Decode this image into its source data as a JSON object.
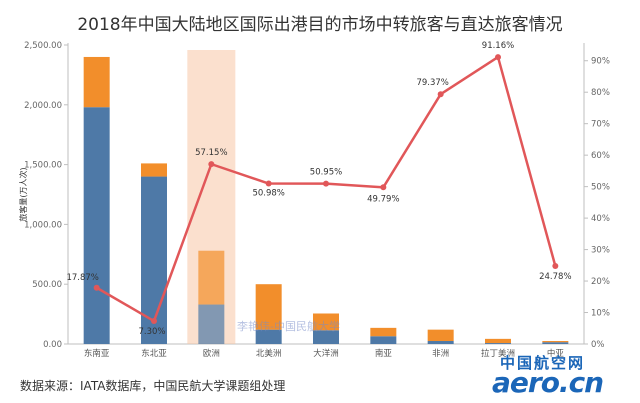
{
  "chart_data": {
    "type": "bar",
    "title": "2018年中国大陆地区国际出港目的市场中转旅客与直达旅客情况",
    "ylabel": "旅客量(万人次)",
    "ylim": [
      0,
      2500
    ],
    "ylim_right": [
      0,
      0.95
    ],
    "y_ticks": [
      "0.00",
      "500.00",
      "1,000.00",
      "1,500.00",
      "2,000.00",
      "2,500.00"
    ],
    "y_tick_values": [
      0,
      500,
      1000,
      1500,
      2000,
      2500
    ],
    "y2_ticks": [
      "0%",
      "10%",
      "20%",
      "30%",
      "40%",
      "50%",
      "60%",
      "70%",
      "80%",
      "90%"
    ],
    "y2_tick_values": [
      0,
      0.1,
      0.2,
      0.3,
      0.4,
      0.5,
      0.6,
      0.7,
      0.8,
      0.9
    ],
    "categories": [
      "东南亚",
      "东北亚",
      "欧洲",
      "北美洲",
      "大洋洲",
      "南亚",
      "非洲",
      "拉丁美洲",
      "中亚"
    ],
    "highlight_category": "欧洲",
    "series": [
      {
        "kind": "bar-lower",
        "color": "#4e79a7",
        "values": [
          1980,
          1400,
          330,
          120,
          115,
          65,
          25,
          8,
          15
        ]
      },
      {
        "kind": "bar-upper",
        "color": "#f28e2b",
        "values": [
          420,
          110,
          450,
          380,
          140,
          70,
          95,
          35,
          10
        ]
      },
      {
        "kind": "line",
        "color": "#e15759",
        "values": [
          0.1787,
          0.073,
          0.5715,
          0.5098,
          0.5095,
          0.4979,
          0.7937,
          0.9116,
          0.2478
        ],
        "labels": [
          "17.87%",
          "7.30%",
          "57.15%",
          "50.98%",
          "50.95%",
          "49.79%",
          "79.37%",
          "91.16%",
          "24.78%"
        ]
      }
    ],
    "legend": "none",
    "grid": false
  },
  "source_note": "数据来源：IATA数据库，中国民航大学课题组处理",
  "overlay_credit": "李艳伟-中国民航大学",
  "watermark": {
    "cn": "中国航空网",
    "domain": "aero.cn"
  }
}
